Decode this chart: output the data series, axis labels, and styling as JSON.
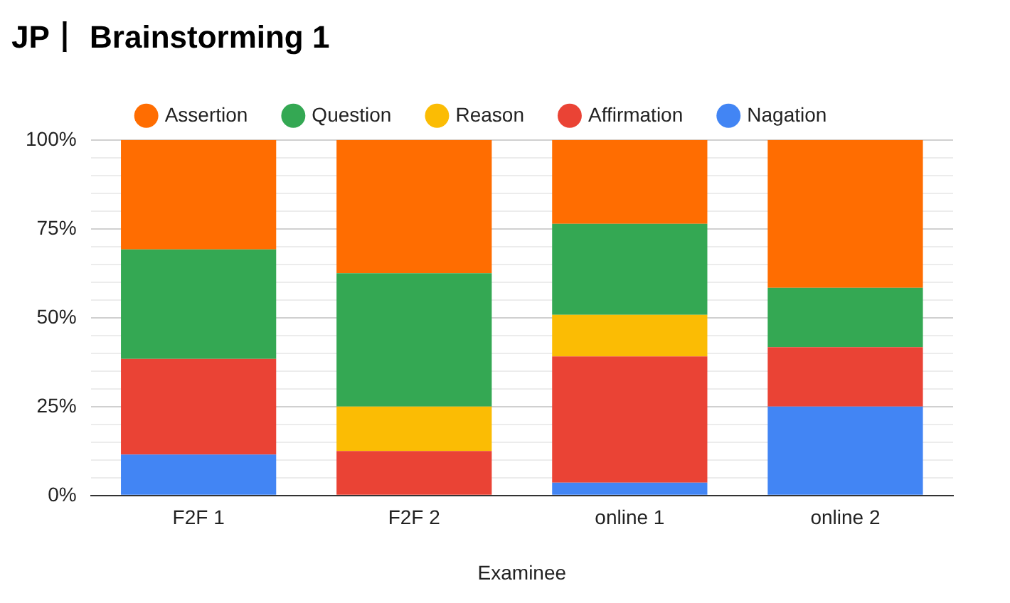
{
  "chart_data": {
    "type": "bar",
    "title": "JP丨 Brainstorming 1",
    "xlabel": "Examinee",
    "categories": [
      "F2F 1",
      "F2F 2",
      "online 1",
      "online 2"
    ],
    "stacked": true,
    "legend": "top",
    "grid": "y",
    "series": [
      {
        "name": "Nagation",
        "color": "#4285f4",
        "values": [
          11.5,
          0,
          3.6,
          25
        ]
      },
      {
        "name": "Affirmation",
        "color": "#ea4335",
        "values": [
          26.9,
          12.5,
          35.5,
          16.7
        ]
      },
      {
        "name": "Reason",
        "color": "#fbbc04",
        "values": [
          0,
          12.5,
          11.7,
          0
        ]
      },
      {
        "name": "Question",
        "color": "#34a853",
        "values": [
          30.8,
          37.5,
          25.6,
          16.7
        ]
      },
      {
        "name": "Assertion",
        "color": "#ff6d01",
        "values": [
          30.8,
          37.5,
          23.6,
          41.6
        ]
      }
    ],
    "ylim": [
      0,
      100
    ],
    "yticks": [
      {
        "value": 0,
        "label": "0%"
      },
      {
        "value": 5,
        "label": null
      },
      {
        "value": 10,
        "label": null
      },
      {
        "value": 15,
        "label": null
      },
      {
        "value": 20,
        "label": null
      },
      {
        "value": 25,
        "label": "25%"
      },
      {
        "value": 30,
        "label": null
      },
      {
        "value": 35,
        "label": null
      },
      {
        "value": 40,
        "label": null
      },
      {
        "value": 45,
        "label": null
      },
      {
        "value": 50,
        "label": "50%"
      },
      {
        "value": 55,
        "label": null
      },
      {
        "value": 60,
        "label": null
      },
      {
        "value": 65,
        "label": null
      },
      {
        "value": 70,
        "label": null
      },
      {
        "value": 75,
        "label": "75%"
      },
      {
        "value": 80,
        "label": null
      },
      {
        "value": 85,
        "label": null
      },
      {
        "value": 90,
        "label": null
      },
      {
        "value": 95,
        "label": null
      },
      {
        "value": 100,
        "label": "100%"
      }
    ]
  }
}
